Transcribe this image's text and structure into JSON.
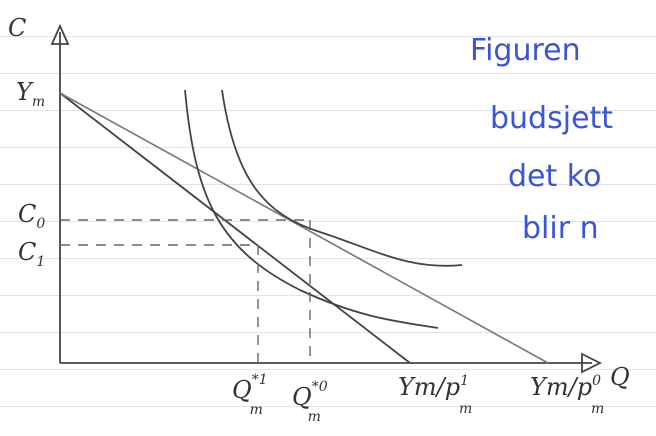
{
  "axes": {
    "y_label": "C",
    "x_label": "Q"
  },
  "y_labels": [
    {
      "main": "Y",
      "sub": "m"
    },
    {
      "main": "C",
      "sub": "0"
    },
    {
      "main": "C",
      "sub": "1"
    }
  ],
  "x_labels": [
    {
      "main": "Q",
      "sup": "*1",
      "sub": "m"
    },
    {
      "main": "Q",
      "sup": "*0",
      "sub": "m"
    },
    {
      "main": "Ym/p",
      "sup": "1",
      "sub": "m"
    },
    {
      "main": "Ym/p",
      "sup": "0",
      "sub": "m"
    }
  ],
  "note_lines": [
    "Figuren",
    "budsjett",
    "det ko",
    "blir n"
  ]
}
